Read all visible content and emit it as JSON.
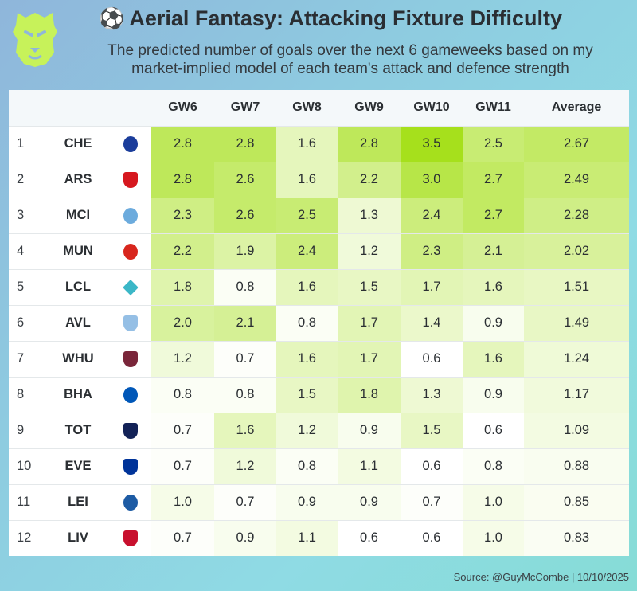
{
  "header": {
    "title": "Aerial Fantasy: Attacking Fixture Difficulty",
    "title_icon": "soccer-ball-icon",
    "subtitle_line1": "The predicted number of goals over the next 6 gameweeks based on my",
    "subtitle_line2": "market-implied model of each team's attack and defence strength",
    "logo_icon": "lion-head-icon",
    "logo_color": "#c7f25a"
  },
  "footer": {
    "source": "Source: @GuyMcCombe | 10/10/2025"
  },
  "colors": {
    "scale_low": "#ffffff",
    "scale_high": "#a6e01c"
  },
  "chart_data": {
    "type": "table",
    "columns": [
      "GW6",
      "GW7",
      "GW8",
      "GW9",
      "GW10",
      "GW11",
      "Average"
    ],
    "color_range": [
      0.6,
      3.5
    ],
    "rows": [
      {
        "rank": "1",
        "team": "CHE",
        "crest": "chelsea-crest-icon",
        "crest_color": "#1b3d9b",
        "values": [
          "2.8",
          "2.8",
          "1.6",
          "2.8",
          "3.5",
          "2.5"
        ],
        "average": "2.67"
      },
      {
        "rank": "2",
        "team": "ARS",
        "crest": "arsenal-crest-icon",
        "crest_color": "#d6181f",
        "values": [
          "2.8",
          "2.6",
          "1.6",
          "2.2",
          "3.0",
          "2.7"
        ],
        "average": "2.49"
      },
      {
        "rank": "3",
        "team": "MCI",
        "crest": "man-city-crest-icon",
        "crest_color": "#6cabdd",
        "values": [
          "2.3",
          "2.6",
          "2.5",
          "1.3",
          "2.4",
          "2.7"
        ],
        "average": "2.28"
      },
      {
        "rank": "4",
        "team": "MUN",
        "crest": "man-utd-crest-icon",
        "crest_color": "#d8261d",
        "values": [
          "2.2",
          "1.9",
          "2.4",
          "1.2",
          "2.3",
          "2.1"
        ],
        "average": "2.02"
      },
      {
        "rank": "5",
        "team": "LCL",
        "crest": "lincoln-diamond-icon",
        "crest_color": "#3bb7c7",
        "values": [
          "1.8",
          "0.8",
          "1.6",
          "1.5",
          "1.7",
          "1.6"
        ],
        "average": "1.51"
      },
      {
        "rank": "6",
        "team": "AVL",
        "crest": "aston-villa-crest-icon",
        "crest_color": "#95bfe5",
        "values": [
          "2.0",
          "2.1",
          "0.8",
          "1.7",
          "1.4",
          "0.9"
        ],
        "average": "1.49"
      },
      {
        "rank": "7",
        "team": "WHU",
        "crest": "west-ham-crest-icon",
        "crest_color": "#7a263a",
        "values": [
          "1.2",
          "0.7",
          "1.6",
          "1.7",
          "0.6",
          "1.6"
        ],
        "average": "1.24"
      },
      {
        "rank": "8",
        "team": "BHA",
        "crest": "brighton-crest-icon",
        "crest_color": "#0057b8",
        "values": [
          "0.8",
          "0.8",
          "1.5",
          "1.8",
          "1.3",
          "0.9"
        ],
        "average": "1.17"
      },
      {
        "rank": "9",
        "team": "TOT",
        "crest": "tottenham-crest-icon",
        "crest_color": "#132257",
        "values": [
          "0.7",
          "1.6",
          "1.2",
          "0.9",
          "1.5",
          "0.6"
        ],
        "average": "1.09"
      },
      {
        "rank": "10",
        "team": "EVE",
        "crest": "everton-crest-icon",
        "crest_color": "#003399",
        "values": [
          "0.7",
          "1.2",
          "0.8",
          "1.1",
          "0.6",
          "0.8"
        ],
        "average": "0.88"
      },
      {
        "rank": "11",
        "team": "LEI",
        "crest": "leicester-crest-icon",
        "crest_color": "#1d5ba4",
        "values": [
          "1.0",
          "0.7",
          "0.9",
          "0.9",
          "0.7",
          "1.0"
        ],
        "average": "0.85"
      },
      {
        "rank": "12",
        "team": "LIV",
        "crest": "liverpool-crest-icon",
        "crest_color": "#c8102e",
        "values": [
          "0.7",
          "0.9",
          "1.1",
          "0.6",
          "0.6",
          "1.0"
        ],
        "average": "0.83"
      }
    ]
  }
}
